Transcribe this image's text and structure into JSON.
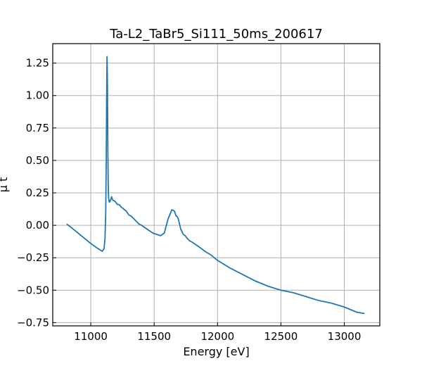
{
  "chart_data": {
    "type": "line",
    "title": "Ta-L2_TaBr5_Si111_50ms_200617",
    "xlabel": "Energy [eV]",
    "ylabel": "μ t",
    "xlim": [
      10700,
      13280
    ],
    "ylim": [
      -0.775,
      1.4
    ],
    "xticks": [
      11000,
      11500,
      12000,
      12500,
      13000
    ],
    "yticks": [
      -0.75,
      -0.5,
      -0.25,
      0.0,
      0.25,
      0.5,
      0.75,
      1.0,
      1.25
    ],
    "xtick_labels": [
      "11000",
      "11500",
      "12000",
      "12500",
      "13000"
    ],
    "ytick_labels": [
      "−0.75",
      "−0.50",
      "−0.25",
      "0.00",
      "0.25",
      "0.50",
      "0.75",
      "1.00",
      "1.25"
    ],
    "grid": true,
    "line_color": "#1f77b4",
    "series": [
      {
        "x": [
          10810,
          10850,
          10900,
          10950,
          11000,
          11050,
          11090,
          11105,
          11112,
          11118,
          11122,
          11125,
          11128,
          11131,
          11133,
          11135,
          11137,
          11140,
          11145,
          11150,
          11158,
          11165,
          11170,
          11178,
          11185,
          11195,
          11210,
          11225,
          11240,
          11255,
          11265,
          11280,
          11300,
          11320,
          11340,
          11360,
          11380,
          11400,
          11430,
          11460,
          11490,
          11520,
          11550,
          11580,
          11610,
          11640,
          11660,
          11670,
          11675,
          11680,
          11685,
          11690,
          11695,
          11700,
          11705,
          11710,
          11720,
          11730,
          11745,
          11760,
          11780,
          11800,
          11830,
          11860,
          11900,
          11950,
          12000,
          12050,
          12100,
          12200,
          12300,
          12400,
          12500,
          12600,
          12700,
          12800,
          12900,
          13000,
          13100,
          13160
        ],
        "y": [
          0.01,
          -0.02,
          -0.06,
          -0.1,
          -0.14,
          -0.175,
          -0.2,
          -0.18,
          -0.1,
          0.1,
          0.5,
          0.95,
          1.3,
          1.15,
          0.85,
          0.55,
          0.35,
          0.22,
          0.18,
          0.18,
          0.2,
          0.22,
          0.2,
          0.19,
          0.19,
          0.18,
          0.16,
          0.16,
          0.14,
          0.13,
          0.12,
          0.11,
          0.08,
          0.07,
          0.05,
          0.03,
          0.01,
          0.0,
          -0.02,
          -0.04,
          -0.06,
          -0.07,
          -0.08,
          -0.06,
          0.05,
          0.12,
          0.11,
          0.08,
          0.07,
          0.07,
          0.06,
          0.05,
          0.03,
          0.01,
          -0.01,
          -0.03,
          -0.05,
          -0.07,
          -0.08,
          -0.1,
          -0.12,
          -0.13,
          -0.15,
          -0.17,
          -0.2,
          -0.23,
          -0.27,
          -0.3,
          -0.33,
          -0.38,
          -0.43,
          -0.47,
          -0.5,
          -0.52,
          -0.55,
          -0.58,
          -0.6,
          -0.63,
          -0.67,
          -0.68
        ]
      }
    ]
  }
}
